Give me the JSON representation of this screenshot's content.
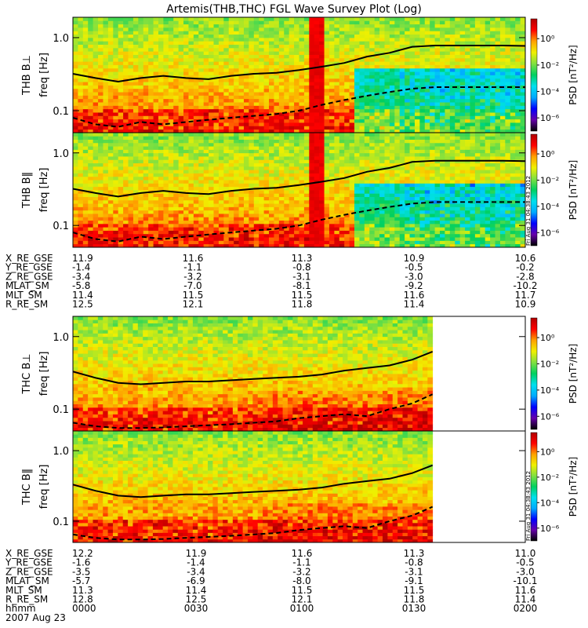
{
  "title": "Artemis(THB,THC) FGL Wave Survey Plot (Log)",
  "stamp": "Fri Aug 31 04:38:43 2012",
  "colorbar": {
    "label": "PSD [nT²/Hz]",
    "ticks": [
      "10⁰",
      "10⁻²",
      "10⁻⁴",
      "10⁻⁶"
    ],
    "tick_values": [
      0,
      -2,
      -4,
      -6
    ],
    "range_log10": [
      -7,
      1.5
    ],
    "colormap": [
      "#000000",
      "#6600aa",
      "#0000ff",
      "#00aaff",
      "#00e0ee",
      "#00d060",
      "#80e040",
      "#f0f000",
      "#ffa000",
      "#ff0000",
      "#b00000"
    ]
  },
  "chart_data": [
    {
      "type": "heatmap",
      "panel": "THB B⊥",
      "ylabel": "freq [Hz]",
      "yscale": "log",
      "ylim": [
        0.05,
        1.9
      ],
      "yticks": [
        "1.0",
        "0.1"
      ],
      "ytick_values": [
        1.0,
        0.1
      ],
      "x_data_end_fraction": 1.0,
      "lines": [
        {
          "style": "solid",
          "x": [
            0,
            0.05,
            0.1,
            0.15,
            0.2,
            0.25,
            0.3,
            0.35,
            0.4,
            0.45,
            0.5,
            0.55,
            0.6,
            0.65,
            0.7,
            0.75,
            0.8,
            0.85,
            0.9,
            0.95,
            1.0
          ],
          "y": [
            0.32,
            0.28,
            0.25,
            0.28,
            0.3,
            0.28,
            0.27,
            0.3,
            0.32,
            0.33,
            0.36,
            0.4,
            0.45,
            0.55,
            0.62,
            0.75,
            0.78,
            0.78,
            0.78,
            0.78,
            0.77
          ]
        },
        {
          "style": "dashed",
          "x": [
            0,
            0.05,
            0.1,
            0.15,
            0.2,
            0.25,
            0.3,
            0.35,
            0.4,
            0.45,
            0.5,
            0.55,
            0.6,
            0.65,
            0.7,
            0.75,
            0.8,
            0.85,
            0.9,
            0.95,
            1.0
          ],
          "y": [
            0.08,
            0.065,
            0.06,
            0.07,
            0.065,
            0.07,
            0.075,
            0.08,
            0.085,
            0.09,
            0.1,
            0.12,
            0.14,
            0.16,
            0.18,
            0.2,
            0.21,
            0.21,
            0.21,
            0.21,
            0.21
          ]
        }
      ]
    },
    {
      "type": "heatmap",
      "panel": "THB B‖",
      "ylabel": "freq [Hz]",
      "yscale": "log",
      "ylim": [
        0.05,
        1.9
      ],
      "yticks": [
        "1.0",
        "0.1"
      ],
      "ytick_values": [
        1.0,
        0.1
      ],
      "x_data_end_fraction": 1.0,
      "lines": [
        {
          "style": "solid",
          "x": [
            0,
            0.05,
            0.1,
            0.15,
            0.2,
            0.25,
            0.3,
            0.35,
            0.4,
            0.45,
            0.5,
            0.55,
            0.6,
            0.65,
            0.7,
            0.75,
            0.8,
            0.85,
            0.9,
            0.95,
            1.0
          ],
          "y": [
            0.32,
            0.28,
            0.25,
            0.28,
            0.3,
            0.28,
            0.27,
            0.3,
            0.32,
            0.33,
            0.36,
            0.4,
            0.45,
            0.55,
            0.62,
            0.75,
            0.78,
            0.78,
            0.78,
            0.78,
            0.77
          ]
        },
        {
          "style": "dashed",
          "x": [
            0,
            0.05,
            0.1,
            0.15,
            0.2,
            0.25,
            0.3,
            0.35,
            0.4,
            0.45,
            0.5,
            0.55,
            0.6,
            0.65,
            0.7,
            0.75,
            0.8,
            0.85,
            0.9,
            0.95,
            1.0
          ],
          "y": [
            0.08,
            0.065,
            0.06,
            0.07,
            0.065,
            0.07,
            0.075,
            0.08,
            0.085,
            0.09,
            0.1,
            0.12,
            0.14,
            0.16,
            0.18,
            0.2,
            0.21,
            0.21,
            0.21,
            0.21,
            0.21
          ]
        }
      ]
    },
    {
      "type": "heatmap",
      "panel": "THC B⊥",
      "ylabel": "freq [Hz]",
      "yscale": "log",
      "ylim": [
        0.05,
        1.9
      ],
      "yticks": [
        "1.0",
        "0.1"
      ],
      "ytick_values": [
        1.0,
        0.1
      ],
      "x_data_end_fraction": 0.795,
      "lines": [
        {
          "style": "solid",
          "x": [
            0,
            0.05,
            0.1,
            0.15,
            0.2,
            0.25,
            0.3,
            0.35,
            0.4,
            0.45,
            0.5,
            0.55,
            0.6,
            0.65,
            0.7,
            0.75,
            0.795
          ],
          "y": [
            0.33,
            0.27,
            0.23,
            0.22,
            0.23,
            0.24,
            0.24,
            0.25,
            0.26,
            0.27,
            0.28,
            0.3,
            0.34,
            0.37,
            0.4,
            0.48,
            0.62
          ]
        },
        {
          "style": "dashed",
          "x": [
            0,
            0.05,
            0.1,
            0.15,
            0.2,
            0.25,
            0.3,
            0.35,
            0.4,
            0.45,
            0.5,
            0.55,
            0.6,
            0.65,
            0.7,
            0.75,
            0.795
          ],
          "y": [
            0.065,
            0.058,
            0.055,
            0.055,
            0.056,
            0.058,
            0.06,
            0.062,
            0.065,
            0.068,
            0.075,
            0.08,
            0.085,
            0.08,
            0.1,
            0.12,
            0.16
          ]
        }
      ]
    },
    {
      "type": "heatmap",
      "panel": "THC B‖",
      "ylabel": "freq [Hz]",
      "yscale": "log",
      "ylim": [
        0.05,
        1.9
      ],
      "yticks": [
        "1.0",
        "0.1"
      ],
      "ytick_values": [
        1.0,
        0.1
      ],
      "x_data_end_fraction": 0.795,
      "lines": [
        {
          "style": "solid",
          "x": [
            0,
            0.05,
            0.1,
            0.15,
            0.2,
            0.25,
            0.3,
            0.35,
            0.4,
            0.45,
            0.5,
            0.55,
            0.6,
            0.65,
            0.7,
            0.75,
            0.795
          ],
          "y": [
            0.33,
            0.27,
            0.23,
            0.22,
            0.23,
            0.24,
            0.24,
            0.25,
            0.26,
            0.27,
            0.28,
            0.3,
            0.34,
            0.37,
            0.4,
            0.48,
            0.62
          ]
        },
        {
          "style": "dashed",
          "x": [
            0,
            0.05,
            0.1,
            0.15,
            0.2,
            0.25,
            0.3,
            0.35,
            0.4,
            0.45,
            0.5,
            0.55,
            0.6,
            0.65,
            0.7,
            0.75,
            0.795
          ],
          "y": [
            0.065,
            0.058,
            0.055,
            0.055,
            0.056,
            0.058,
            0.06,
            0.062,
            0.065,
            0.068,
            0.075,
            0.08,
            0.085,
            0.08,
            0.1,
            0.12,
            0.16
          ]
        }
      ]
    }
  ],
  "ephemeris_thb": {
    "labels": [
      "X_RE_GSE",
      "Y_RE_GSE",
      "Z_RE_GSE",
      "MLAT_SM",
      "MLT_SM",
      "R_RE_SM"
    ],
    "rows": [
      [
        "11.9",
        "11.6",
        "11.3",
        "10.9",
        "10.6"
      ],
      [
        "-1.4",
        "-1.1",
        "-0.8",
        "-0.5",
        "-0.2"
      ],
      [
        "-3.4",
        "-3.2",
        "-3.1",
        "-3.0",
        "-2.8"
      ],
      [
        "-5.8",
        "-7.0",
        "-8.1",
        "-9.2",
        "-10.2"
      ],
      [
        "11.4",
        "11.5",
        "11.5",
        "11.6",
        "11.7"
      ],
      [
        "12.5",
        "12.1",
        "11.8",
        "11.4",
        "10.9"
      ]
    ]
  },
  "ephemeris_thc": {
    "labels": [
      "X_RE_GSE",
      "Y_RE_GSE",
      "Z_RE_GSE",
      "MLAT_SM",
      "MLT_SM",
      "R_RE_SM",
      "hhmm"
    ],
    "rows": [
      [
        "12.2",
        "11.9",
        "11.6",
        "11.3",
        "11.0"
      ],
      [
        "-1.6",
        "-1.4",
        "-1.1",
        "-0.8",
        "-0.5"
      ],
      [
        "-3.5",
        "-3.4",
        "-3.2",
        "-3.1",
        "-3.0"
      ],
      [
        "-5.7",
        "-6.9",
        "-8.0",
        "-9.1",
        "-10.1"
      ],
      [
        "11.3",
        "11.4",
        "11.5",
        "11.5",
        "11.6"
      ],
      [
        "12.8",
        "12.5",
        "12.1",
        "11.8",
        "11.4"
      ],
      [
        "0000",
        "0030",
        "0100",
        "0130",
        "0200"
      ]
    ],
    "date": "2007 Aug 23"
  }
}
